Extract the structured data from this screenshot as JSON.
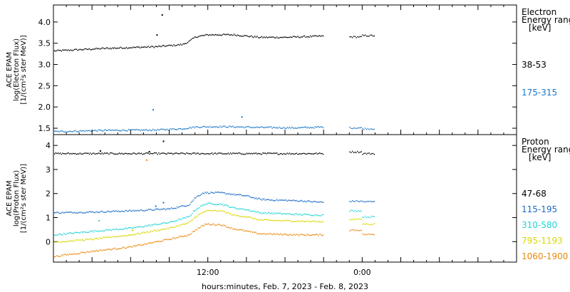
{
  "chart_data": {
    "type": "scatter",
    "xlabel": "hours:minutes, Feb.  7, 2023 - Feb.  8, 2023",
    "x_range_hours": [
      0,
      36
    ],
    "x_ticks": [
      {
        "hour": 12,
        "label": "12:00"
      },
      {
        "hour": 24,
        "label": "0:00"
      }
    ],
    "panels": [
      {
        "id": "electron",
        "ylabel_lines": [
          "ACE EPAM",
          "log(Electron Flux)",
          "[1/(cm²s ster MeV)]"
        ],
        "ylim": [
          1.35,
          4.4
        ],
        "yticks": [
          1.5,
          2.0,
          2.5,
          3.0,
          3.5,
          4.0
        ],
        "ytick_labels": [
          "1.5",
          "2.0",
          "2.5",
          "3.0",
          "3.5",
          "4.0"
        ],
        "legend_title_lines": [
          "Electron",
          "Energy range",
          "[keV]"
        ],
        "series": [
          {
            "name": "38-53",
            "color": "#000000",
            "profile": [
              [
                0,
                3.33
              ],
              [
                2,
                3.36
              ],
              [
                4,
                3.39
              ],
              [
                6,
                3.41
              ],
              [
                8,
                3.43
              ],
              [
                10,
                3.48
              ],
              [
                10.5,
                3.55
              ],
              [
                11,
                3.66
              ],
              [
                12,
                3.71
              ],
              [
                14,
                3.71
              ],
              [
                16,
                3.65
              ],
              [
                18,
                3.65
              ],
              [
                21,
                3.68
              ]
            ],
            "spikes": [
              [
                8.4,
                4.18
              ],
              [
                8.0,
                3.71
              ]
            ],
            "after_gap": [
              [
                23,
                3.66
              ],
              [
                24,
                3.69
              ]
            ]
          },
          {
            "name": "175-315",
            "color": "#1a78c8",
            "profile": [
              [
                0,
                1.43
              ],
              [
                4,
                1.46
              ],
              [
                8,
                1.47
              ],
              [
                10,
                1.5
              ],
              [
                11,
                1.54
              ],
              [
                13,
                1.55
              ],
              [
                16,
                1.53
              ],
              [
                19,
                1.52
              ],
              [
                21,
                1.54
              ]
            ],
            "spikes": [
              [
                7.7,
                1.95
              ],
              [
                14.6,
                1.78
              ]
            ],
            "after_gap": [
              [
                23,
                1.52
              ],
              [
                24,
                1.5
              ]
            ]
          }
        ]
      },
      {
        "id": "proton",
        "ylabel_lines": [
          "ACE EPAM",
          "log(Proton Flux)",
          "[1/(cm²s ster MeV)]"
        ],
        "ylim": [
          -0.85,
          4.45
        ],
        "yticks": [
          0,
          1,
          2,
          3,
          4
        ],
        "ytick_labels": [
          "0",
          "1",
          "2",
          "3",
          "4"
        ],
        "legend_title_lines": [
          "Proton",
          "Energy range",
          "[keV]"
        ],
        "series": [
          {
            "name": "47-68",
            "color": "#000000",
            "profile": [
              [
                0,
                3.68
              ],
              [
                21,
                3.68
              ]
            ],
            "spikes": [
              [
                3.6,
                3.8
              ],
              [
                8.5,
                4.2
              ],
              [
                7.4,
                3.77
              ]
            ],
            "after_gap": [
              [
                23,
                3.75
              ],
              [
                24,
                3.68
              ]
            ]
          },
          {
            "name": "115-195",
            "color": "#1a6bc8",
            "profile": [
              [
                0,
                1.22
              ],
              [
                3,
                1.25
              ],
              [
                6,
                1.3
              ],
              [
                9,
                1.38
              ],
              [
                10.5,
                1.55
              ],
              [
                11,
                1.85
              ],
              [
                11.6,
                2.05
              ],
              [
                13,
                2.05
              ],
              [
                14,
                1.98
              ],
              [
                15,
                1.92
              ],
              [
                16,
                1.78
              ],
              [
                17,
                1.75
              ],
              [
                19,
                1.72
              ],
              [
                21,
                1.65
              ]
            ],
            "spikes": [
              [
                8.5,
                1.65
              ],
              [
                7.9,
                1.5
              ]
            ],
            "after_gap": [
              [
                23,
                1.7
              ],
              [
                24,
                1.68
              ]
            ]
          },
          {
            "name": "310-580",
            "color": "#22d4d4",
            "profile": [
              [
                0,
                0.3
              ],
              [
                3,
                0.45
              ],
              [
                6,
                0.58
              ],
              [
                9,
                0.82
              ],
              [
                10.5,
                1.05
              ],
              [
                11,
                1.35
              ],
              [
                11.8,
                1.6
              ],
              [
                13,
                1.58
              ],
              [
                14,
                1.42
              ],
              [
                15,
                1.35
              ],
              [
                16,
                1.22
              ],
              [
                19,
                1.15
              ],
              [
                21,
                1.12
              ]
            ],
            "spikes": [
              [
                3.5,
                0.9
              ]
            ],
            "after_gap": [
              [
                23,
                1.3
              ],
              [
                24,
                1.05
              ]
            ]
          },
          {
            "name": "795-1193",
            "color": "#d8d800",
            "profile": [
              [
                0,
                0.0
              ],
              [
                3,
                0.12
              ],
              [
                6,
                0.3
              ],
              [
                9,
                0.58
              ],
              [
                10.5,
                0.8
              ],
              [
                11,
                1.05
              ],
              [
                11.8,
                1.3
              ],
              [
                13,
                1.3
              ],
              [
                14,
                1.12
              ],
              [
                15,
                1.05
              ],
              [
                16,
                0.92
              ],
              [
                19,
                0.87
              ],
              [
                21,
                0.85
              ]
            ],
            "spikes": [
              [
                6.1,
                0.5
              ]
            ],
            "after_gap": [
              [
                23,
                0.95
              ],
              [
                24,
                0.75
              ]
            ]
          },
          {
            "name": "1060-1900",
            "color": "#e88a10",
            "profile": [
              [
                0,
                -0.6
              ],
              [
                3,
                -0.38
              ],
              [
                6,
                -0.2
              ],
              [
                9,
                0.12
              ],
              [
                10.5,
                0.3
              ],
              [
                11,
                0.5
              ],
              [
                11.8,
                0.75
              ],
              [
                13,
                0.72
              ],
              [
                14,
                0.55
              ],
              [
                15,
                0.45
              ],
              [
                16,
                0.35
              ],
              [
                19,
                0.3
              ],
              [
                21,
                0.3
              ]
            ],
            "spikes": [
              [
                7.2,
                3.42
              ]
            ],
            "after_gap": [
              [
                23,
                0.5
              ],
              [
                24,
                0.32
              ]
            ]
          }
        ]
      }
    ]
  }
}
